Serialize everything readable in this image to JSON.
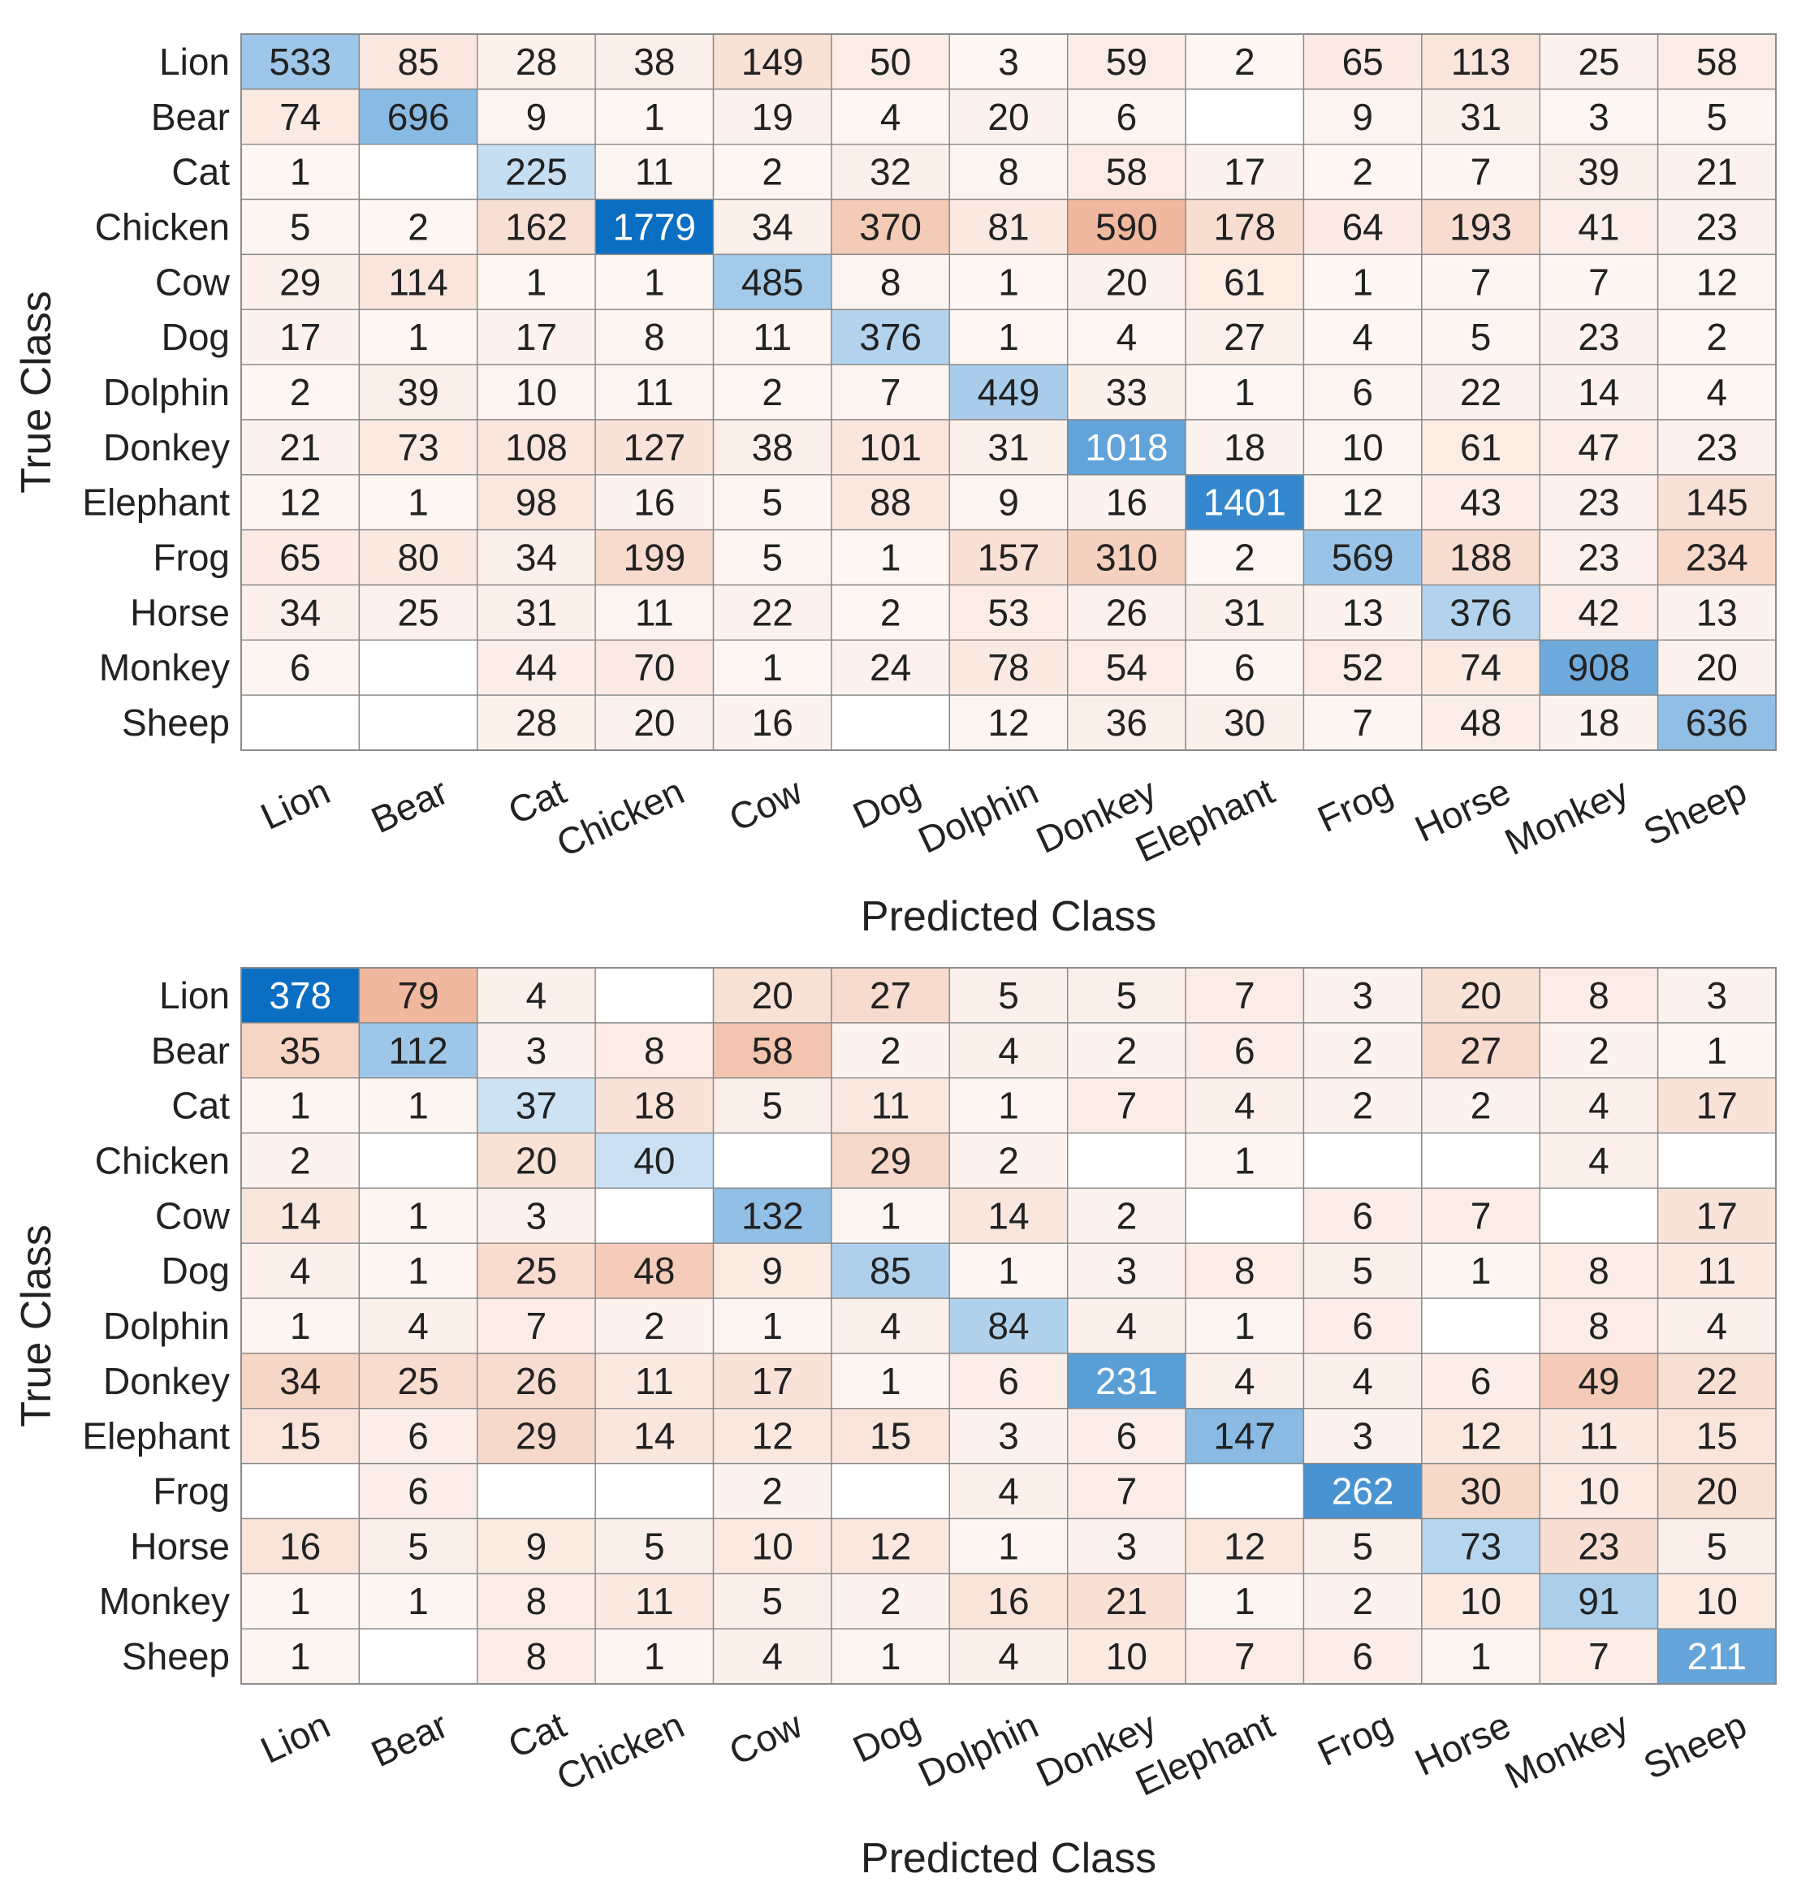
{
  "chart_data": [
    {
      "type": "heatmap",
      "title": "",
      "xlabel": "Predicted Class",
      "ylabel": "True Class",
      "row_labels": [
        "Lion",
        "Bear",
        "Cat",
        "Chicken",
        "Cow",
        "Dog",
        "Dolphin",
        "Donkey",
        "Elephant",
        "Frog",
        "Horse",
        "Monkey",
        "Sheep"
      ],
      "col_labels": [
        "Lion",
        "Bear",
        "Cat",
        "Chicken",
        "Cow",
        "Dog",
        "Dolphin",
        "Donkey",
        "Elephant",
        "Frog",
        "Horse",
        "Monkey",
        "Sheep"
      ],
      "values": [
        [
          533,
          85,
          28,
          38,
          149,
          50,
          3,
          59,
          2,
          65,
          113,
          25,
          58
        ],
        [
          74,
          696,
          9,
          1,
          19,
          4,
          20,
          6,
          null,
          9,
          31,
          3,
          5
        ],
        [
          1,
          null,
          225,
          11,
          2,
          32,
          8,
          58,
          17,
          2,
          7,
          39,
          21
        ],
        [
          5,
          2,
          162,
          1779,
          34,
          370,
          81,
          590,
          178,
          64,
          193,
          41,
          23
        ],
        [
          29,
          114,
          1,
          1,
          485,
          8,
          1,
          20,
          61,
          1,
          7,
          7,
          12
        ],
        [
          17,
          1,
          17,
          8,
          11,
          376,
          1,
          4,
          27,
          4,
          5,
          23,
          2
        ],
        [
          2,
          39,
          10,
          11,
          2,
          7,
          449,
          33,
          1,
          6,
          22,
          14,
          4
        ],
        [
          21,
          73,
          108,
          127,
          38,
          101,
          31,
          1018,
          18,
          10,
          61,
          47,
          23
        ],
        [
          12,
          1,
          98,
          16,
          5,
          88,
          9,
          16,
          1401,
          12,
          43,
          23,
          145
        ],
        [
          65,
          80,
          34,
          199,
          5,
          1,
          157,
          310,
          2,
          569,
          188,
          23,
          234
        ],
        [
          34,
          25,
          31,
          11,
          22,
          2,
          53,
          26,
          31,
          13,
          376,
          42,
          13
        ],
        [
          6,
          null,
          44,
          70,
          1,
          24,
          78,
          54,
          6,
          52,
          74,
          908,
          20
        ],
        [
          null,
          null,
          28,
          20,
          16,
          null,
          12,
          36,
          30,
          7,
          48,
          18,
          636
        ]
      ],
      "colors": {
        "diag_light": "#e9f3fb",
        "diag_dark": "#0a6ec2",
        "off_light": "#fdf7f4",
        "off_dark": "#f0b89e",
        "empty": "#ffffff",
        "grid": "#8a8a8a"
      }
    },
    {
      "type": "heatmap",
      "title": "",
      "xlabel": "Predicted Class",
      "ylabel": "True Class",
      "row_labels": [
        "Lion",
        "Bear",
        "Cat",
        "Chicken",
        "Cow",
        "Dog",
        "Dolphin",
        "Donkey",
        "Elephant",
        "Frog",
        "Horse",
        "Monkey",
        "Sheep"
      ],
      "col_labels": [
        "Lion",
        "Bear",
        "Cat",
        "Chicken",
        "Cow",
        "Dog",
        "Dolphin",
        "Donkey",
        "Elephant",
        "Frog",
        "Horse",
        "Monkey",
        "Sheep"
      ],
      "values": [
        [
          378,
          79,
          4,
          null,
          20,
          27,
          5,
          5,
          7,
          3,
          20,
          8,
          3
        ],
        [
          35,
          112,
          3,
          8,
          58,
          2,
          4,
          2,
          6,
          2,
          27,
          2,
          1
        ],
        [
          1,
          1,
          37,
          18,
          5,
          11,
          1,
          7,
          4,
          2,
          2,
          4,
          17
        ],
        [
          2,
          null,
          20,
          40,
          null,
          29,
          2,
          null,
          1,
          null,
          null,
          4,
          null
        ],
        [
          14,
          1,
          3,
          null,
          132,
          1,
          14,
          2,
          null,
          6,
          7,
          null,
          17
        ],
        [
          4,
          1,
          25,
          48,
          9,
          85,
          1,
          3,
          8,
          5,
          1,
          8,
          11
        ],
        [
          1,
          4,
          7,
          2,
          1,
          4,
          84,
          4,
          1,
          6,
          null,
          8,
          4
        ],
        [
          34,
          25,
          26,
          11,
          17,
          1,
          6,
          231,
          4,
          4,
          6,
          49,
          22
        ],
        [
          15,
          6,
          29,
          14,
          12,
          15,
          3,
          6,
          147,
          3,
          12,
          11,
          15
        ],
        [
          null,
          6,
          null,
          null,
          2,
          null,
          4,
          7,
          null,
          262,
          30,
          10,
          20
        ],
        [
          16,
          5,
          9,
          5,
          10,
          12,
          1,
          3,
          12,
          5,
          73,
          23,
          5
        ],
        [
          1,
          1,
          8,
          11,
          5,
          2,
          16,
          21,
          1,
          2,
          10,
          91,
          10
        ],
        [
          1,
          null,
          8,
          1,
          4,
          1,
          4,
          10,
          7,
          6,
          1,
          7,
          211
        ]
      ],
      "colors": {
        "diag_light": "#e9f3fb",
        "diag_dark": "#0a6ec2",
        "off_light": "#fdf7f4",
        "off_dark": "#f0b89e",
        "empty": "#ffffff",
        "grid": "#8a8a8a"
      }
    }
  ]
}
